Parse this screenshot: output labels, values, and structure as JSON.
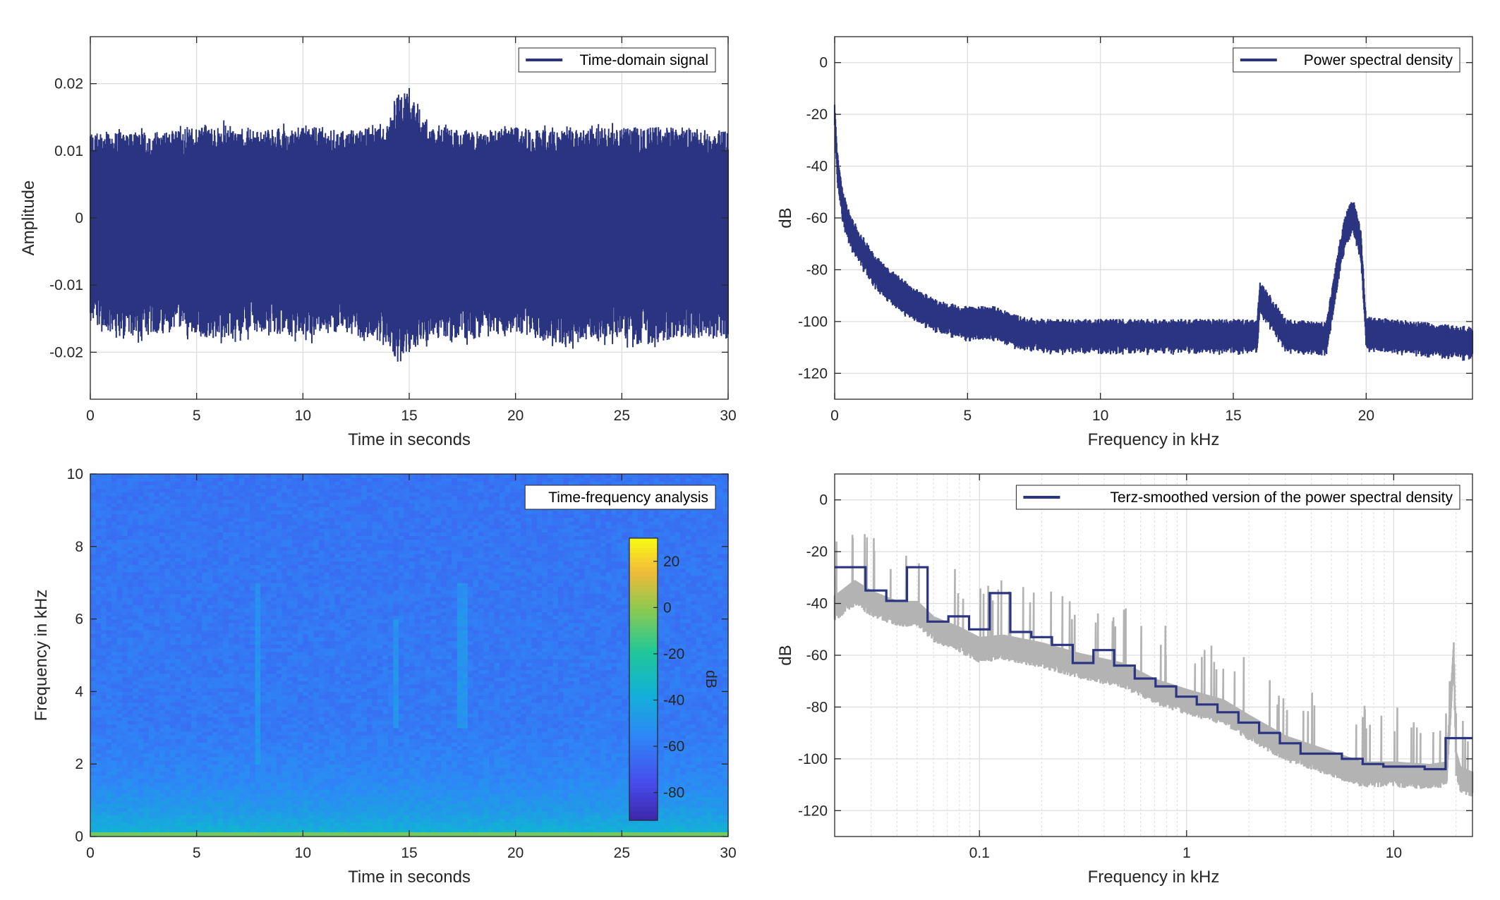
{
  "colors": {
    "series": "#2b3480",
    "raw_psd": "#b3b3b3",
    "grid": "#dedede",
    "axes": "#262626"
  },
  "chart_data": [
    {
      "id": "p1",
      "type": "line",
      "title": "",
      "xlabel": "Time in seconds",
      "ylabel": "Amplitude",
      "xlim": [
        0,
        30
      ],
      "ylim": [
        -0.027,
        0.027
      ],
      "xticks": [
        0,
        5,
        10,
        15,
        20,
        25,
        30
      ],
      "yticks": [
        -0.02,
        -0.01,
        0,
        0.01,
        0.02
      ],
      "ytick_labels": [
        "-0.02",
        "-0.01",
        "0",
        "0.01",
        "0.02"
      ],
      "grid": true,
      "legend": "top-right",
      "series": [
        {
          "name": "Time-domain signal",
          "description": "dense noise, envelope roughly ±0.013, peaks to about ±0.02",
          "envelope_x": [
            0,
            2,
            4,
            6,
            8,
            10,
            12,
            14,
            14.5,
            15,
            16,
            18,
            20,
            22,
            24,
            26,
            28,
            30
          ],
          "envelope_upper": [
            0.0125,
            0.013,
            0.013,
            0.014,
            0.013,
            0.014,
            0.013,
            0.014,
            0.0185,
            0.019,
            0.0135,
            0.013,
            0.0135,
            0.013,
            0.0135,
            0.0135,
            0.0135,
            0.013
          ],
          "envelope_lower": [
            -0.016,
            -0.018,
            -0.017,
            -0.018,
            -0.017,
            -0.018,
            -0.017,
            -0.019,
            -0.022,
            -0.02,
            -0.018,
            -0.018,
            -0.017,
            -0.019,
            -0.018,
            -0.019,
            -0.018,
            -0.018
          ]
        }
      ]
    },
    {
      "id": "p2",
      "type": "line",
      "title": "",
      "xlabel": "Frequency in kHz",
      "ylabel": "dB",
      "xlim": [
        0,
        24
      ],
      "ylim": [
        -130,
        10
      ],
      "xticks": [
        0,
        5,
        10,
        15,
        20
      ],
      "yticks": [
        0,
        -20,
        -40,
        -60,
        -80,
        -100,
        -120
      ],
      "grid": true,
      "legend": "top-right",
      "series": [
        {
          "name": "Power spectral density",
          "x": [
            0,
            0.1,
            0.3,
            0.6,
            1,
            1.5,
            2,
            3,
            4,
            5,
            6,
            7,
            8,
            10,
            12,
            14,
            15.9,
            16,
            17,
            18.5,
            19,
            19.2,
            19.5,
            19.8,
            20,
            21,
            22,
            23,
            24
          ],
          "y": [
            -20,
            -40,
            -55,
            -65,
            -72,
            -80,
            -85,
            -93,
            -98,
            -100,
            -100,
            -104,
            -105,
            -105,
            -105,
            -105,
            -105,
            -90,
            -105,
            -106,
            -75,
            -65,
            -58,
            -70,
            -104,
            -105,
            -106,
            -107,
            -108
          ]
        }
      ]
    },
    {
      "id": "p3",
      "type": "heatmap",
      "title": "",
      "xlabel": "Time in seconds",
      "ylabel": "Frequency in kHz",
      "xlim": [
        0,
        30
      ],
      "ylim": [
        0,
        10
      ],
      "xticks": [
        0,
        5,
        10,
        15,
        20,
        25,
        30
      ],
      "yticks": [
        0,
        2,
        4,
        6,
        8,
        10
      ],
      "legend": "top-right",
      "legend_label": "Time-frequency analysis",
      "colorbar": {
        "label": "dB",
        "ticks": [
          20,
          0,
          -20,
          -40,
          -60,
          -80
        ],
        "range": [
          -92,
          30
        ]
      },
      "values_description": "background about -60 dB, rising toward -35 dB below 0.5 kHz; faint vertical streaks near 8 s and 17.5 s between 2 and 7 kHz",
      "band_levels_khz": [
        [
          0,
          -32
        ],
        [
          0.3,
          -40
        ],
        [
          0.8,
          -48
        ],
        [
          1.6,
          -55
        ],
        [
          3,
          -60
        ],
        [
          10,
          -62
        ]
      ],
      "streaks": [
        {
          "t": 7.9,
          "f_range": [
            2,
            7
          ]
        },
        {
          "t": 17.5,
          "f_range": [
            3,
            7
          ]
        },
        {
          "t": 14.4,
          "f_range": [
            3,
            6
          ]
        }
      ]
    },
    {
      "id": "p4",
      "type": "line",
      "title": "",
      "xlabel": "Frequency in kHz",
      "ylabel": "dB",
      "xscale": "log",
      "xlim": [
        0.02,
        24
      ],
      "ylim": [
        -130,
        10
      ],
      "xticks": [
        0.1,
        1,
        10
      ],
      "xtick_labels": [
        "0.1",
        "1",
        "10"
      ],
      "yticks": [
        0,
        -20,
        -40,
        -60,
        -80,
        -100,
        -120
      ],
      "grid": true,
      "legend": "top-right",
      "series": [
        {
          "name": "Terz-smoothed version of the power spectral density",
          "step_edges": [
            0.02,
            0.0282,
            0.0355,
            0.0447,
            0.0562,
            0.0708,
            0.0891,
            0.112,
            0.141,
            0.178,
            0.224,
            0.282,
            0.355,
            0.447,
            0.562,
            0.708,
            0.891,
            1.12,
            1.41,
            1.78,
            2.24,
            2.82,
            3.55,
            4.47,
            5.62,
            7.08,
            8.91,
            11.2,
            14.1,
            17.8,
            24
          ],
          "y": [
            -26,
            -35,
            -39,
            -26,
            -47,
            -45,
            -50,
            -36,
            -51,
            -53,
            -56,
            -63,
            -58,
            -64,
            -69,
            -72,
            -76,
            -79,
            -82,
            -86,
            -90,
            -94,
            -98,
            -98,
            -100,
            -102,
            -103,
            -103,
            -104,
            -92
          ]
        },
        {
          "name": "",
          "style": "raw-gray",
          "x": [
            0.02,
            0.025,
            0.03,
            0.04,
            0.05,
            0.06,
            0.08,
            0.1,
            0.13,
            0.2,
            0.3,
            0.5,
            0.7,
            1,
            1.5,
            2,
            3,
            5,
            7,
            10,
            15,
            18,
            19.5,
            20,
            21,
            24
          ],
          "y": [
            -40,
            -34,
            -38,
            -42,
            -42,
            -48,
            -52,
            -56,
            -55,
            -58,
            -62,
            -66,
            -72,
            -76,
            -80,
            -86,
            -94,
            -100,
            -104,
            -104,
            -105,
            -104,
            -58,
            -100,
            -106,
            -108
          ]
        }
      ]
    }
  ]
}
